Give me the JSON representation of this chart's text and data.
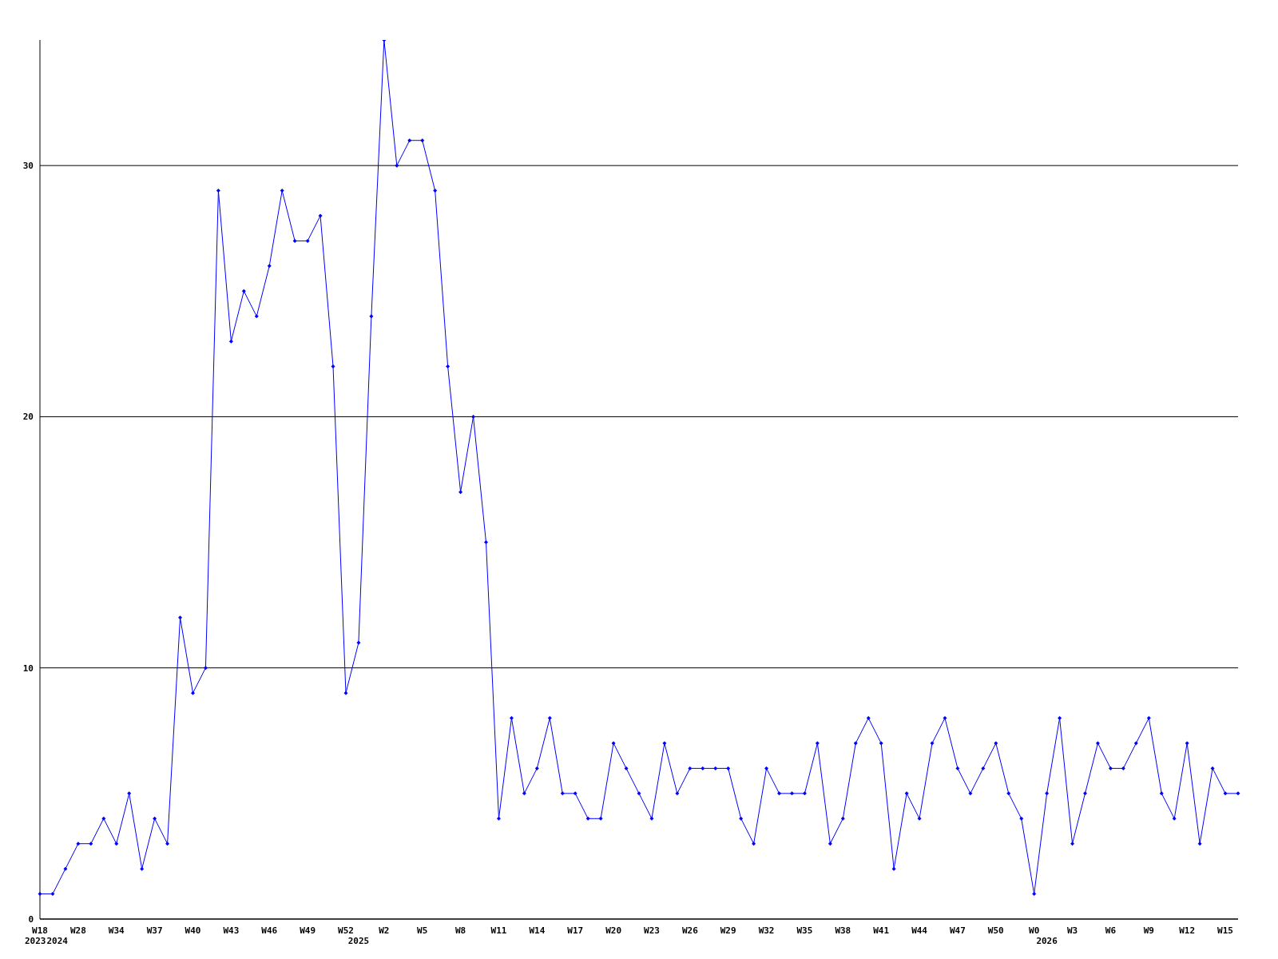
{
  "chart_data": {
    "type": "line",
    "categories": [
      "W18\n2023",
      "\n2024",
      null,
      "W28",
      null,
      null,
      "W34",
      null,
      null,
      "W37",
      null,
      null,
      "W40",
      null,
      null,
      "W43",
      null,
      null,
      "W46",
      null,
      null,
      "W49",
      null,
      null,
      "W52",
      "\n2025",
      null,
      "W2",
      null,
      null,
      "W5",
      null,
      null,
      "W8",
      null,
      null,
      "W11",
      null,
      null,
      "W14",
      null,
      null,
      "W17",
      null,
      null,
      "W20",
      null,
      null,
      "W23",
      null,
      null,
      "W26",
      null,
      null,
      "W29",
      null,
      null,
      "W32",
      null,
      null,
      "W35",
      null,
      null,
      "W38",
      null,
      null,
      "W41",
      null,
      null,
      "W44",
      null,
      null,
      "W47",
      null,
      null,
      "W50",
      null,
      null,
      "W0",
      "\n2026",
      null,
      "W3",
      null,
      null,
      "W6",
      null,
      null,
      "W9",
      null,
      null,
      "W12",
      null,
      null,
      "W15",
      null
    ],
    "series": [
      {
        "color": "#0000ff",
        "values": [
          1,
          1,
          2,
          3,
          3,
          4,
          3,
          5,
          2,
          4,
          3,
          12,
          9,
          10,
          29,
          23,
          25,
          24,
          26,
          29,
          27,
          27,
          28,
          22,
          9,
          11,
          24,
          35,
          30,
          31,
          31,
          29,
          22,
          17,
          20,
          15,
          4,
          8,
          5,
          6,
          8,
          5,
          5,
          4,
          4,
          7,
          6,
          5,
          4,
          7,
          5,
          6,
          6,
          6,
          6,
          4,
          3,
          6,
          5,
          5,
          5,
          7,
          3,
          4,
          7,
          8,
          7,
          2,
          5,
          4,
          7,
          8,
          6,
          5,
          6,
          7,
          5,
          4,
          1,
          5,
          8,
          3,
          5,
          7,
          6,
          6,
          7,
          8,
          5,
          4,
          7,
          3,
          6,
          5,
          5
        ]
      }
    ],
    "ylim": [
      0,
      35
    ],
    "yticks": [
      0,
      10,
      20,
      30
    ],
    "grid": "y",
    "marker": "diamond",
    "line_style": "solid"
  }
}
